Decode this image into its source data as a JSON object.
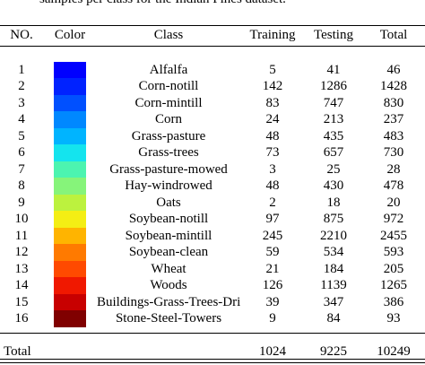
{
  "caption": "samples per class for the Indian Pines dataset.",
  "headers": {
    "no": "NO.",
    "color": "Color",
    "class": "Class",
    "training": "Training",
    "testing": "Testing",
    "total": "Total"
  },
  "rows": [
    {
      "no": "1",
      "color": "#0000ff",
      "class": "Alfalfa",
      "training": "5",
      "testing": "41",
      "total": "46"
    },
    {
      "no": "2",
      "color": "#0022ff",
      "class": "Corn-notill",
      "training": "142",
      "testing": "1286",
      "total": "1428"
    },
    {
      "no": "3",
      "color": "#0050ff",
      "class": "Corn-mintill",
      "training": "83",
      "testing": "747",
      "total": "830"
    },
    {
      "no": "4",
      "color": "#0088ff",
      "class": "Corn",
      "training": "24",
      "testing": "213",
      "total": "237"
    },
    {
      "no": "5",
      "color": "#00b4ff",
      "class": "Grass-pasture",
      "training": "48",
      "testing": "435",
      "total": "483"
    },
    {
      "no": "6",
      "color": "#14e4ee",
      "class": "Grass-trees",
      "training": "73",
      "testing": "657",
      "total": "730"
    },
    {
      "no": "7",
      "color": "#4cf4b0",
      "class": "Grass-pasture-mowed",
      "training": "3",
      "testing": "25",
      "total": "28"
    },
    {
      "no": "8",
      "color": "#86f47a",
      "class": "Hay-windrowed",
      "training": "48",
      "testing": "430",
      "total": "478"
    },
    {
      "no": "9",
      "color": "#bcf23e",
      "class": "Oats",
      "training": "2",
      "testing": "18",
      "total": "20"
    },
    {
      "no": "10",
      "color": "#f4ee14",
      "class": "Soybean-notill",
      "training": "97",
      "testing": "875",
      "total": "972"
    },
    {
      "no": "11",
      "color": "#ffb400",
      "class": "Soybean-mintill",
      "training": "245",
      "testing": "2210",
      "total": "2455"
    },
    {
      "no": "12",
      "color": "#ff7a00",
      "class": "Soybean-clean",
      "training": "59",
      "testing": "534",
      "total": "593"
    },
    {
      "no": "13",
      "color": "#ff4a00",
      "class": "Wheat",
      "training": "21",
      "testing": "184",
      "total": "205"
    },
    {
      "no": "14",
      "color": "#f01800",
      "class": "Woods",
      "training": "126",
      "testing": "1139",
      "total": "1265"
    },
    {
      "no": "15",
      "color": "#c80000",
      "class": "Buildings-Grass-Trees-Drives",
      "training": "39",
      "testing": "347",
      "total": "386"
    },
    {
      "no": "16",
      "color": "#800000",
      "class": "Stone-Steel-Towers",
      "training": "9",
      "testing": "84",
      "total": "93"
    }
  ],
  "total_row": {
    "label": "Total",
    "training": "1024",
    "testing": "9225",
    "total": "10249"
  }
}
